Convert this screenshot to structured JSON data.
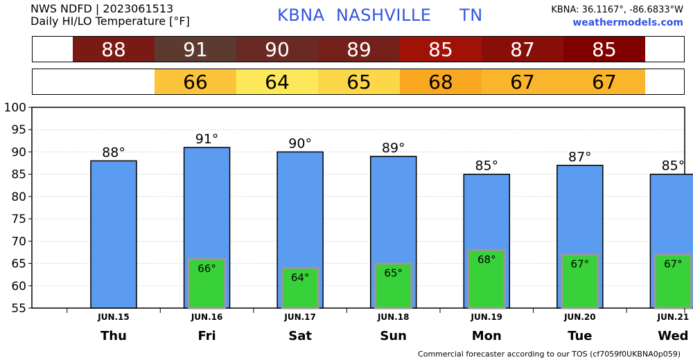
{
  "header": {
    "line1": "NWS NDFD | 2023061513",
    "line2": "Daily HI/LO Temperature [°F]",
    "station_title": "KBNA  NASHVILLE     TN",
    "coords": "KBNA: 36.1167°, -86.6833°W",
    "site": "weathermodels.com"
  },
  "hi_strip": [
    {
      "text": "88",
      "color": "#7a1a14"
    },
    {
      "text": "91",
      "color": "#5b3a30"
    },
    {
      "text": "90",
      "color": "#6a2a24"
    },
    {
      "text": "89",
      "color": "#74201a"
    },
    {
      "text": "85",
      "color": "#a01208"
    },
    {
      "text": "87",
      "color": "#880e0a"
    },
    {
      "text": "85",
      "color": "#800000"
    }
  ],
  "lo_strip": [
    {
      "text": "66",
      "color": "#fcc43a"
    },
    {
      "text": "64",
      "color": "#fde75a"
    },
    {
      "text": "65",
      "color": "#fcd74a"
    },
    {
      "text": "68",
      "color": "#f9a820"
    },
    {
      "text": "67",
      "color": "#fbb52c"
    },
    {
      "text": "67",
      "color": "#fbb52c"
    }
  ],
  "chart_data": {
    "type": "bar",
    "categories": [
      "Thu",
      "Fri",
      "Sat",
      "Sun",
      "Mon",
      "Tue",
      "Wed"
    ],
    "dates": [
      "JUN.15",
      "JUN.16",
      "JUN.17",
      "JUN.18",
      "JUN.19",
      "JUN.20",
      "JUN.21"
    ],
    "series": [
      {
        "values": [
          88,
          91,
          90,
          89,
          85,
          87,
          85
        ],
        "labels": [
          "88°",
          "91°",
          "90°",
          "89°",
          "85°",
          "87°",
          "85°"
        ],
        "color": "#5b9bf0"
      },
      {
        "values": [
          null,
          66,
          64,
          65,
          68,
          67,
          67
        ],
        "labels": [
          "",
          "66°",
          "64°",
          "65°",
          "68°",
          "67°",
          "67°"
        ],
        "color": "#39d139"
      }
    ],
    "yticks": [
      "100",
      "95",
      "90",
      "85",
      "80",
      "75",
      "70",
      "65",
      "60",
      "55"
    ],
    "ylim": [
      55,
      100
    ],
    "grid": true
  },
  "footer": "Commercial forecaster according to our TOS (cf7059f0UKBNA0p059)"
}
